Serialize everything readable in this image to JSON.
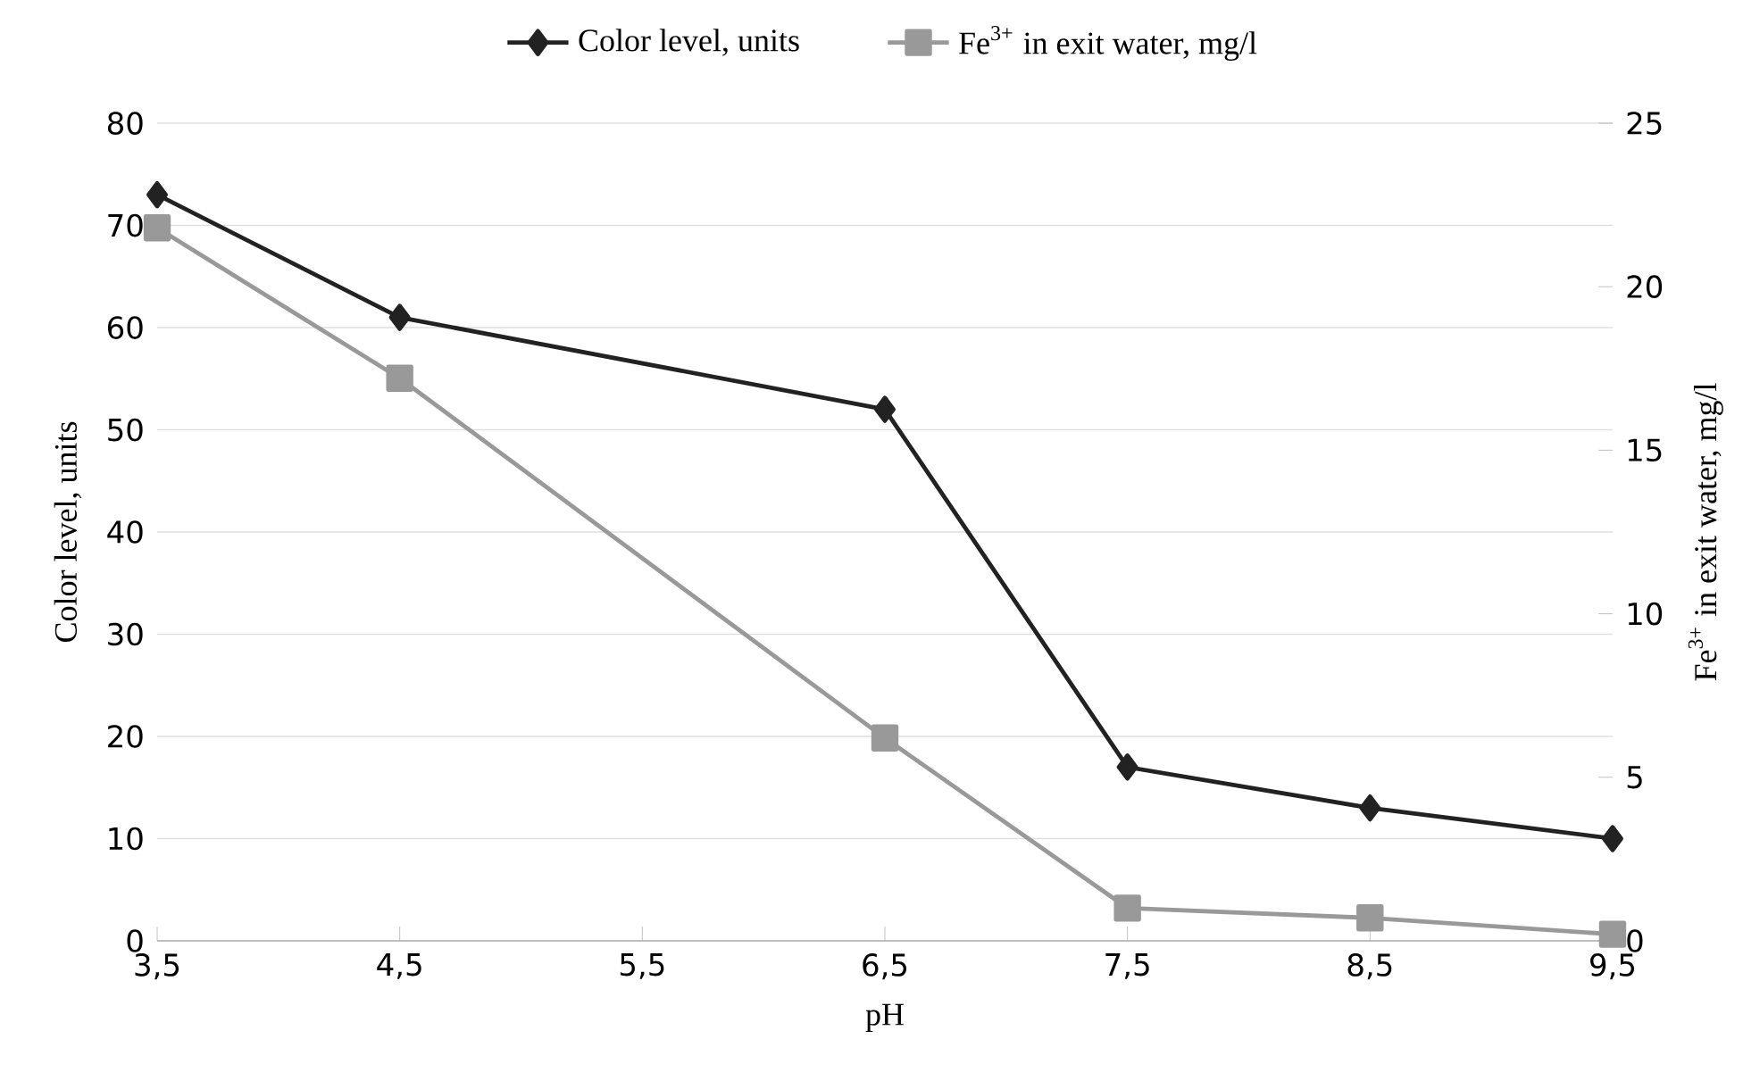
{
  "chart_data": {
    "type": "line",
    "xlabel": "pH",
    "ylabel": "Color level, units",
    "y2label": "Fe$^{3+}$ in exit water, mg/l",
    "x": [
      3.5,
      4.5,
      6.5,
      7.5,
      8.5,
      9.5
    ],
    "xlim": [
      3.5,
      9.5
    ],
    "xticks": [
      {
        "value": 3.5,
        "label": "3,5"
      },
      {
        "value": 4.5,
        "label": "4,5"
      },
      {
        "value": 5.5,
        "label": "5,5"
      },
      {
        "value": 6.5,
        "label": "6,5"
      },
      {
        "value": 7.5,
        "label": "7,5"
      },
      {
        "value": 8.5,
        "label": "8,5"
      },
      {
        "value": 9.5,
        "label": "9,5"
      }
    ],
    "ylim": [
      0,
      80
    ],
    "yticks": [
      0,
      10,
      20,
      30,
      40,
      50,
      60,
      70,
      80
    ],
    "y2lim": [
      0,
      25
    ],
    "y2ticks": [
      0,
      5,
      10,
      15,
      20,
      25
    ],
    "series": [
      {
        "name": "Color level, units",
        "color": "#222222",
        "marker": "diamond",
        "values": [
          73,
          61,
          52,
          17,
          13,
          10
        ]
      },
      {
        "name": "Fe$^{3+}$ in exit water, mg/l",
        "color": "#999999",
        "marker": "square",
        "axis": "y2",
        "values": [
          21.8,
          17.2,
          6.2,
          1.0,
          0.7,
          0.2
        ]
      }
    ],
    "grid": "y",
    "legend": "top",
    "line_style": "solid"
  }
}
